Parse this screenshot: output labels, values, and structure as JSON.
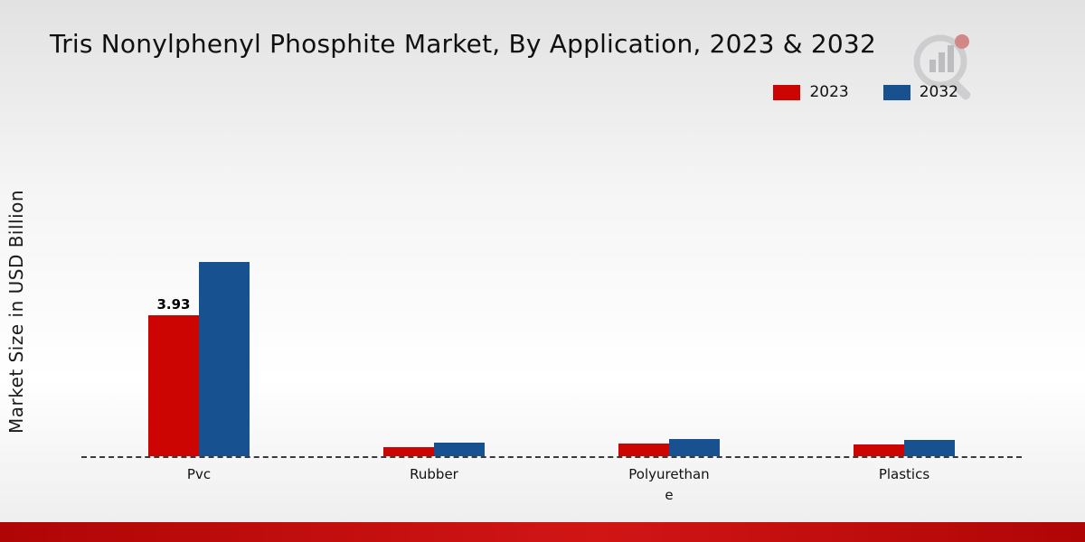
{
  "chart_data": {
    "type": "bar",
    "title": "Tris Nonylphenyl Phosphite Market, By Application, 2023 & 2032",
    "ylabel": "Market Size in USD Billion",
    "xlabel": "",
    "categories": [
      "Pvc",
      "Rubber",
      "Polyurethane",
      "Plastics"
    ],
    "series": [
      {
        "name": "2023",
        "color": "#cc0502",
        "values": [
          3.93,
          0.25,
          0.36,
          0.33
        ],
        "labels": [
          "3.93",
          "",
          "",
          ""
        ]
      },
      {
        "name": "2032",
        "color": "#17518f",
        "values": [
          5.43,
          0.38,
          0.48,
          0.46
        ],
        "labels": [
          "",
          "",
          "",
          ""
        ]
      }
    ],
    "ylim": [
      0,
      9
    ],
    "grid": false,
    "legend_position": "top-right",
    "baseline_style": "dashed"
  },
  "footer": {
    "color": "#b00505"
  },
  "watermark": {
    "name": "market-research-logo"
  }
}
